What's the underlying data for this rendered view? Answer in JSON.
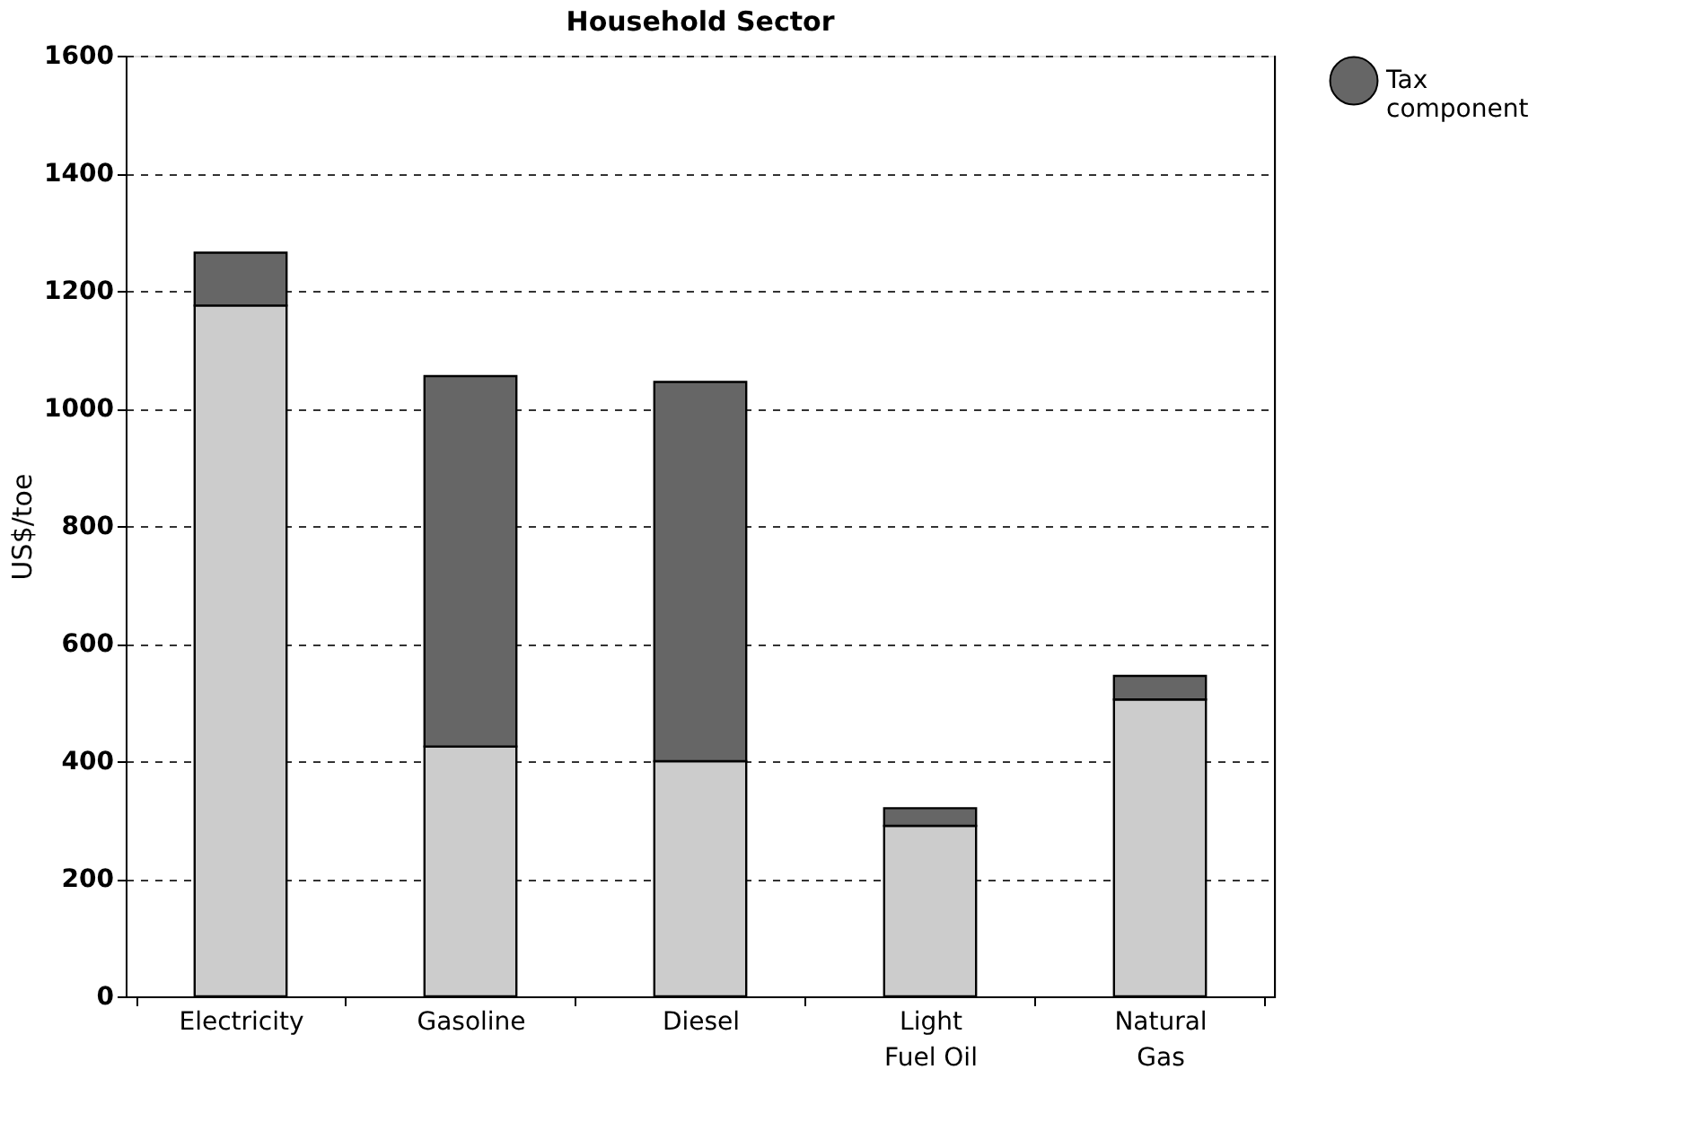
{
  "chart_data": {
    "type": "bar",
    "title": "Household Sector",
    "ylabel": "US$/toe",
    "categories": [
      "Electricity",
      "Gasoline",
      "Diesel",
      "Light\nFuel Oil",
      "Natural\nGas"
    ],
    "series": [
      {
        "color": "#cccccc",
        "values": [
          1175,
          425,
          400,
          290,
          505
        ]
      },
      {
        "name": "Tax component",
        "color": "#666666",
        "values": [
          90,
          630,
          645,
          30,
          40
        ]
      }
    ],
    "stacked": true,
    "ylim": [
      0,
      1600
    ],
    "yticks": [
      0,
      200,
      400,
      600,
      800,
      1000,
      1200,
      1400,
      1600
    ],
    "grid": "y",
    "legend": "right"
  }
}
